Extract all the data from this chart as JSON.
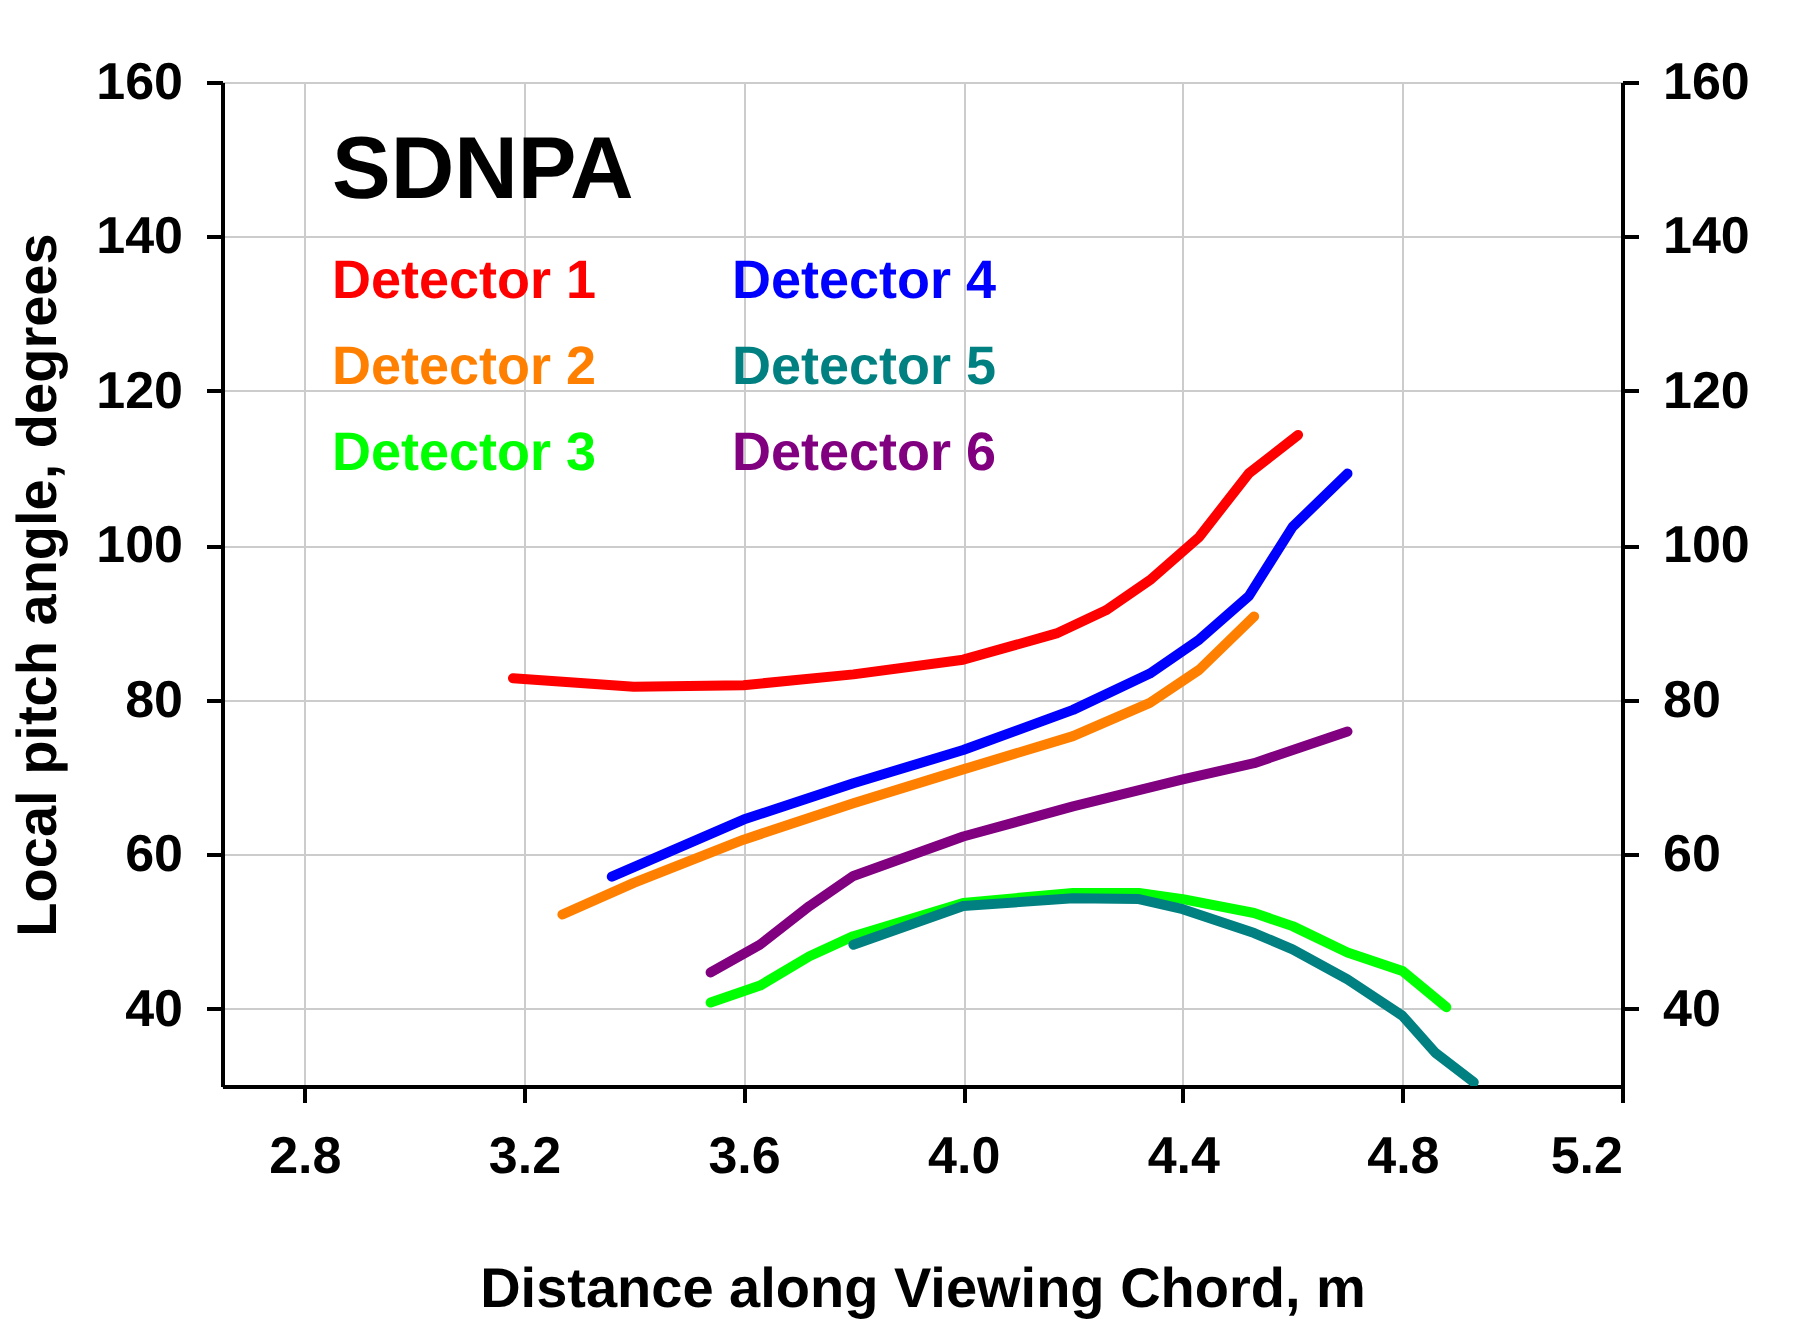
{
  "chart_data": {
    "type": "line",
    "xlabel": "Distance along Viewing Chord, m",
    "ylabel": "Local pitch angle, degrees",
    "annotations": [
      "SDNPA"
    ],
    "xlim": [
      2.65,
      5.2
    ],
    "xticks": [
      2.8,
      3.2,
      3.6,
      {
        "value": 4.0,
        "label": "4.0"
      },
      4.4,
      4.8,
      5.2
    ],
    "ylim": [
      30,
      160
    ],
    "yticks": [
      40,
      60,
      80,
      100,
      120,
      140,
      160
    ],
    "y2lim": [
      30,
      160
    ],
    "y2ticks": [
      40,
      60,
      80,
      100,
      120,
      140,
      160
    ],
    "grid": true,
    "legend": "top left",
    "marker": "none",
    "line_style": "solid",
    "series": [
      {
        "name": "Detector 1",
        "color": "#ff0000",
        "x": [
          3.18,
          3.4,
          3.6,
          3.8,
          4.0,
          4.17,
          4.26,
          4.34,
          4.43,
          4.52,
          4.61
        ],
        "values": [
          82.8,
          81.7,
          81.9,
          83.3,
          85.2,
          88.6,
          91.6,
          95.5,
          101.1,
          109.3,
          114.3
        ]
      },
      {
        "name": "Detector 2",
        "color": "#ff8000",
        "x": [
          3.27,
          3.4,
          3.6,
          3.8,
          4.0,
          4.2,
          4.34,
          4.43,
          4.53
        ],
        "values": [
          52.2,
          56.3,
          61.9,
          66.6,
          71.0,
          75.3,
          79.6,
          83.9,
          90.8
        ]
      },
      {
        "name": "Detector 3",
        "color": "#00ff00",
        "x": [
          3.54,
          3.63,
          3.72,
          3.8,
          4.0,
          4.2,
          4.32,
          4.4,
          4.53,
          4.6,
          4.7,
          4.8,
          4.88
        ],
        "values": [
          40.8,
          43.0,
          46.8,
          49.4,
          53.7,
          55.0,
          55.0,
          54.2,
          52.4,
          50.7,
          47.3,
          44.9,
          40.2
        ]
      },
      {
        "name": "Detector 4",
        "color": "#0000ff",
        "x": [
          3.36,
          3.6,
          3.8,
          4.0,
          4.2,
          4.34,
          4.43,
          4.52,
          4.6,
          4.7
        ],
        "values": [
          57.1,
          64.5,
          69.2,
          73.5,
          78.7,
          83.4,
          87.8,
          93.4,
          102.4,
          109.3
        ]
      },
      {
        "name": "Detector 5",
        "color": "#008080",
        "x": [
          3.8,
          4.0,
          4.2,
          4.32,
          4.4,
          4.53,
          4.6,
          4.7,
          4.8,
          4.86,
          4.93
        ],
        "values": [
          48.3,
          53.3,
          54.3,
          54.2,
          52.9,
          49.8,
          47.7,
          43.8,
          39.1,
          34.3,
          30.5
        ]
      },
      {
        "name": "Detector 6",
        "color": "#800080",
        "x": [
          3.54,
          3.63,
          3.72,
          3.8,
          4.0,
          4.2,
          4.4,
          4.53,
          4.7
        ],
        "values": [
          44.7,
          48.3,
          53.3,
          57.2,
          62.3,
          66.2,
          69.7,
          71.8,
          75.9
        ]
      }
    ]
  }
}
